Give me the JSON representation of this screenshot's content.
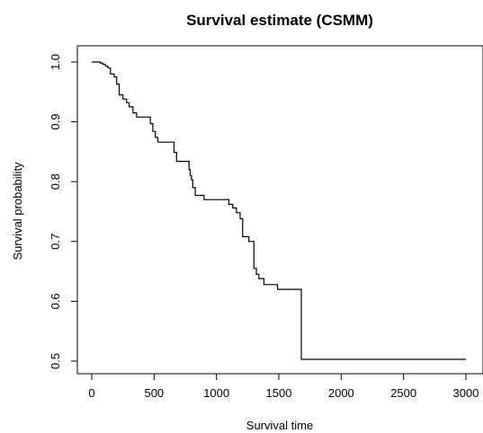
{
  "chart_data": {
    "type": "line",
    "title": "Survival estimate (CSMM)",
    "xlabel": "Survival time",
    "ylabel": "Survival probability",
    "xlim": [
      0,
      3000
    ],
    "ylim": [
      0.5,
      1.0
    ],
    "xticks": [
      0,
      500,
      1000,
      1500,
      2000,
      2500,
      3000
    ],
    "yticks": [
      0.5,
      0.6,
      0.7,
      0.8,
      0.9,
      1.0
    ],
    "xtick_labels": [
      "0",
      "500",
      "1000",
      "1500",
      "2000",
      "2500",
      "3000"
    ],
    "ytick_labels": [
      "0.5",
      "0.6",
      "0.7",
      "0.8",
      "0.9",
      "1.0"
    ],
    "grid": false,
    "legend": "none",
    "series": [
      {
        "step": "post",
        "color": "#000000",
        "x": [
          0,
          70,
          90,
          110,
          130,
          150,
          180,
          200,
          220,
          250,
          280,
          300,
          330,
          360,
          470,
          490,
          510,
          530,
          560,
          660,
          680,
          780,
          790,
          800,
          810,
          830,
          900,
          1060,
          1100,
          1130,
          1160,
          1190,
          1210,
          1260,
          1300,
          1320,
          1340,
          1380,
          1490,
          1680,
          3000
        ],
        "y": [
          1.0,
          0.998,
          0.996,
          0.993,
          0.99,
          0.98,
          0.975,
          0.963,
          0.945,
          0.938,
          0.932,
          0.925,
          0.915,
          0.908,
          0.897,
          0.884,
          0.874,
          0.866,
          0.866,
          0.849,
          0.834,
          0.82,
          0.81,
          0.803,
          0.79,
          0.777,
          0.77,
          0.77,
          0.762,
          0.756,
          0.748,
          0.738,
          0.708,
          0.7,
          0.655,
          0.645,
          0.638,
          0.628,
          0.62,
          0.503,
          0.503
        ]
      }
    ]
  }
}
